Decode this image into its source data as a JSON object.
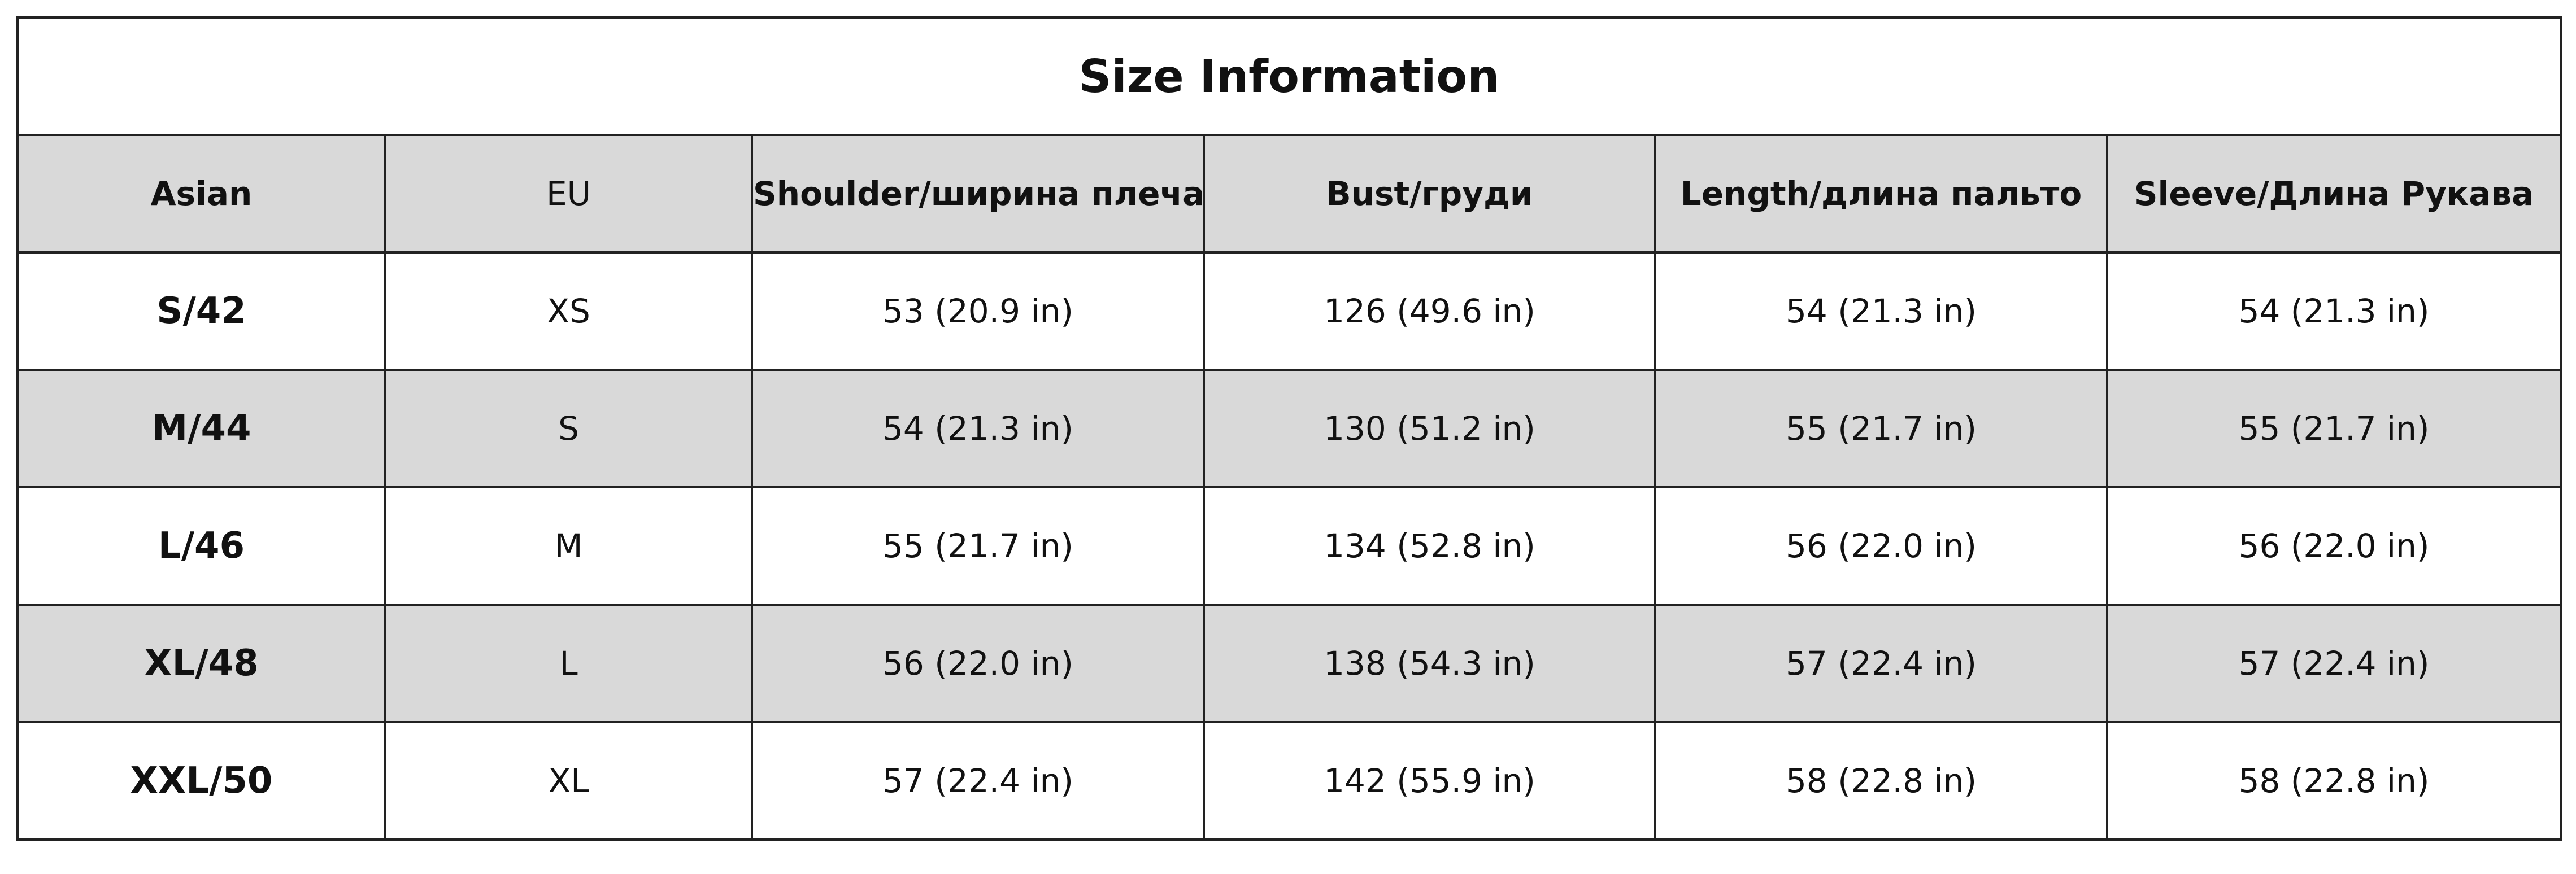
{
  "table": {
    "title": "Size Information",
    "headers": [
      "Asian",
      "EU",
      "Shoulder/ширина плеча",
      "Bust/груди",
      "Length/длина пальто",
      "Sleeve/Длина Рукава"
    ],
    "rows": [
      [
        "S/42",
        "XS",
        "53 (20.9 in)",
        "126 (49.6 in)",
        "54 (21.3 in)",
        "54 (21.3 in)"
      ],
      [
        "M/44",
        "S",
        "54 (21.3 in)",
        "130 (51.2 in)",
        "55 (21.7 in)",
        "55 (21.7 in)"
      ],
      [
        "L/46",
        "M",
        "55 (21.7 in)",
        "134 (52.8 in)",
        "56 (22.0 in)",
        "56 (22.0 in)"
      ],
      [
        "XL/48",
        "L",
        "56 (22.0 in)",
        "138 (54.3 in)",
        "57 (22.4 in)",
        "57 (22.4 in)"
      ],
      [
        "XXL/50",
        "XL",
        "57 (22.4 in)",
        "142 (55.9 in)",
        "58 (22.8 in)",
        "58 (22.8 in)"
      ]
    ]
  }
}
